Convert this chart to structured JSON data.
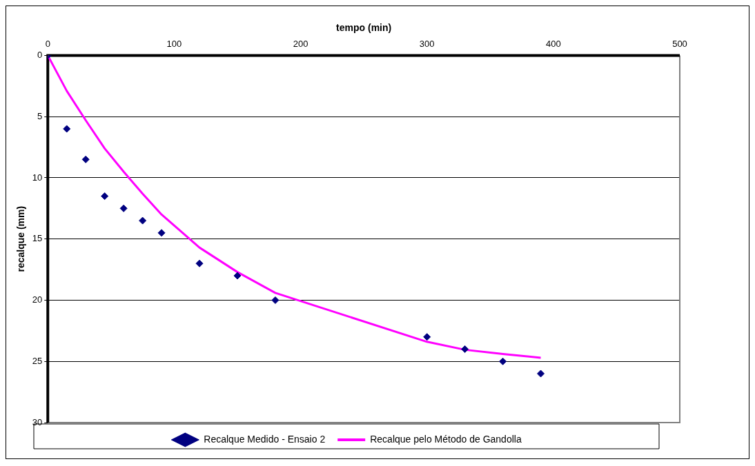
{
  "chart_data": {
    "type": "scatter",
    "xlabel": "tempo (min)",
    "ylabel": "recalque (mm)",
    "xlim": [
      0,
      500
    ],
    "xticks": [
      0,
      100,
      200,
      300,
      400,
      500
    ],
    "ylim": [
      30,
      0
    ],
    "yticks": [
      0,
      5,
      10,
      15,
      20,
      25,
      30
    ],
    "grid": "y",
    "legend": "bottom",
    "marker": "diamond",
    "series": [
      {
        "name": "Recalque Medido - Ensaio 2",
        "type": "scatter",
        "color": "#000080",
        "x": [
          0,
          15,
          30,
          45,
          60,
          75,
          90,
          120,
          150,
          180,
          300,
          330,
          360,
          390
        ],
        "values": [
          0,
          6,
          8.5,
          11.5,
          12.5,
          13.5,
          14.5,
          17,
          18,
          20,
          23,
          24,
          25,
          26
        ]
      },
      {
        "name": "Recalque pelo Método de Gandolla",
        "type": "line",
        "color": "#ff00ff",
        "marker": "none",
        "line_style": "solid",
        "x": [
          0,
          15,
          30,
          45,
          60,
          75,
          90,
          120,
          150,
          180,
          300,
          330,
          360,
          390
        ],
        "values": [
          0,
          2.9,
          5.3,
          7.6,
          9.5,
          11.3,
          13,
          15.7,
          17.7,
          19.4,
          23.4,
          24.05,
          24.4,
          24.7
        ]
      }
    ]
  }
}
